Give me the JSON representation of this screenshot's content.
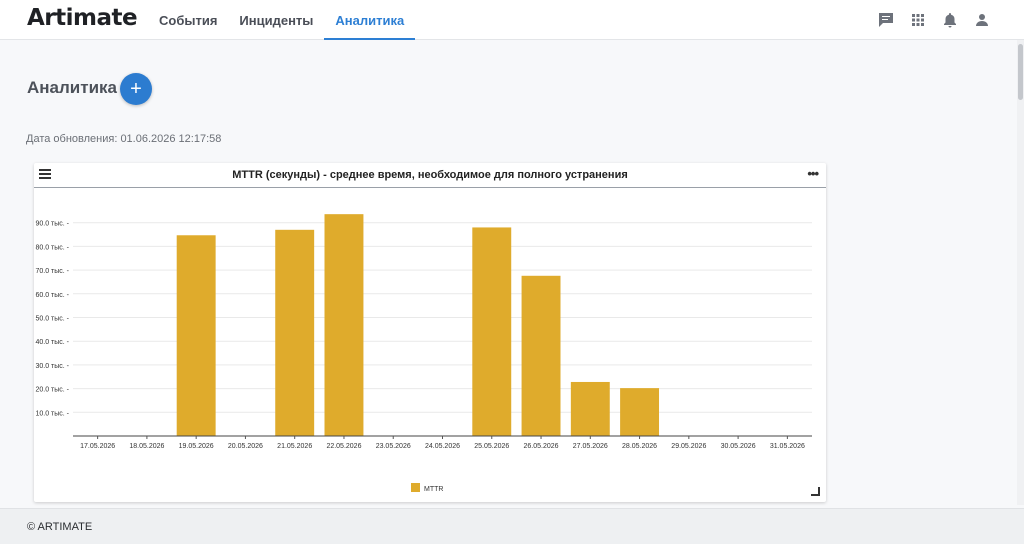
{
  "app": {
    "logo": "Artimate"
  },
  "nav": {
    "items": [
      {
        "label": "События",
        "active": false
      },
      {
        "label": "Инциденты",
        "active": false
      },
      {
        "label": "Аналитика",
        "active": true
      }
    ]
  },
  "top_icons": [
    "chat-icon",
    "apps-grid-icon",
    "bell-icon",
    "user-icon"
  ],
  "page": {
    "title": "Аналитика",
    "add_label": "+",
    "update_label": "Дата обновления: 01.06.2026 12:17:58"
  },
  "card": {
    "title": "MTTR (секунды) - среднее время, необходимое для полного устранения"
  },
  "chart_data": {
    "type": "bar",
    "title": "MTTR (секунды) - среднее время, необходимое для полного устранения",
    "categories": [
      "17.05.2026",
      "18.05.2026",
      "19.05.2026",
      "20.05.2026",
      "21.05.2026",
      "22.05.2026",
      "23.05.2026",
      "24.05.2026",
      "25.05.2026",
      "26.05.2026",
      "27.05.2026",
      "28.05.2026",
      "29.05.2026",
      "30.05.2026",
      "31.05.2026"
    ],
    "series": [
      {
        "name": "MTTR",
        "color": "#dfab2c",
        "values": [
          0,
          0,
          84700,
          0,
          87000,
          93600,
          0,
          0,
          88000,
          67600,
          22800,
          20200,
          0,
          0,
          0
        ]
      }
    ],
    "yticks": [
      10000,
      20000,
      30000,
      40000,
      50000,
      60000,
      70000,
      80000,
      90000
    ],
    "ytick_labels": [
      "10.0 тыс.",
      "20.0 тыс.",
      "30.0 тыс.",
      "40.0 тыс.",
      "50.0 тыс.",
      "60.0 тыс.",
      "70.0 тыс.",
      "80.0 тыс.",
      "90.0 тыс."
    ],
    "ylim": [
      0,
      100000
    ],
    "grid": true,
    "legend": "bottom-center",
    "xlabel": "",
    "ylabel": ""
  },
  "footer": {
    "text": "© ARTIMATE"
  }
}
